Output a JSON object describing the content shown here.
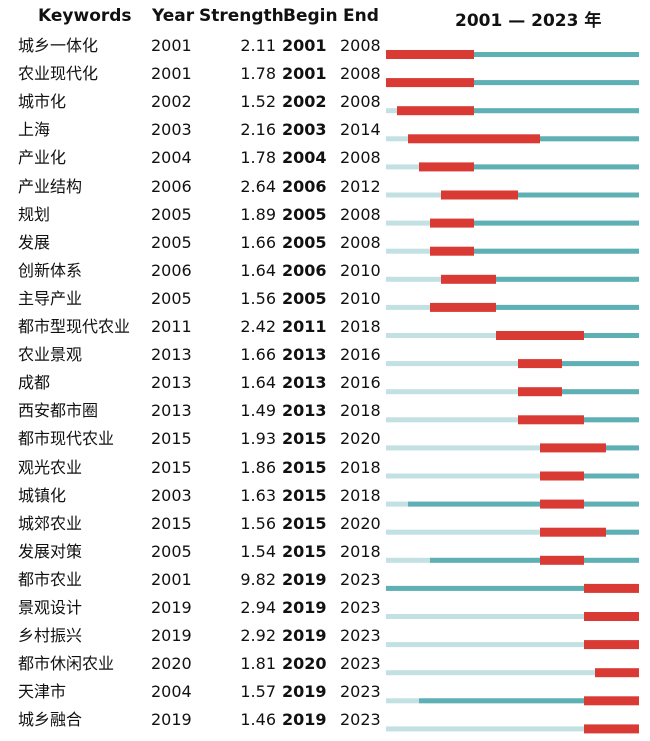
{
  "header": {
    "keywords": "Keywords",
    "year": "Year",
    "strength": "Strength",
    "begin": "Begin",
    "end": "End",
    "range": "2001 — 2023 年"
  },
  "colors": {
    "burst": "#d93a33",
    "active": "#5fb0b4",
    "inactive": "#c3e0e2"
  },
  "chart_data": {
    "type": "table",
    "range_start": 2001,
    "range_end": 2023,
    "columns": [
      "Keywords",
      "Year",
      "Strength",
      "Begin",
      "End"
    ],
    "rows": [
      {
        "keyword": "城乡一体化",
        "year": "2001",
        "strength": "2.11",
        "begin": "2001",
        "end": "2008"
      },
      {
        "keyword": "农业现代化",
        "year": "2001",
        "strength": "1.78",
        "begin": "2001",
        "end": "2008"
      },
      {
        "keyword": "城市化",
        "year": "2002",
        "strength": "1.52",
        "begin": "2002",
        "end": "2008"
      },
      {
        "keyword": "上海",
        "year": "2003",
        "strength": "2.16",
        "begin": "2003",
        "end": "2014"
      },
      {
        "keyword": "产业化",
        "year": "2004",
        "strength": "1.78",
        "begin": "2004",
        "end": "2008"
      },
      {
        "keyword": "产业结构",
        "year": "2006",
        "strength": "2.64",
        "begin": "2006",
        "end": "2012"
      },
      {
        "keyword": "规划",
        "year": "2005",
        "strength": "1.89",
        "begin": "2005",
        "end": "2008"
      },
      {
        "keyword": "发展",
        "year": "2005",
        "strength": "1.66",
        "begin": "2005",
        "end": "2008"
      },
      {
        "keyword": "创新体系",
        "year": "2006",
        "strength": "1.64",
        "begin": "2006",
        "end": "2010"
      },
      {
        "keyword": "主导产业",
        "year": "2005",
        "strength": "1.56",
        "begin": "2005",
        "end": "2010"
      },
      {
        "keyword": "都市型现代农业",
        "year": "2011",
        "strength": "2.42",
        "begin": "2011",
        "end": "2018"
      },
      {
        "keyword": "农业景观",
        "year": "2013",
        "strength": "1.66",
        "begin": "2013",
        "end": "2016"
      },
      {
        "keyword": "成都",
        "year": "2013",
        "strength": "1.64",
        "begin": "2013",
        "end": "2016"
      },
      {
        "keyword": "西安都市圈",
        "year": "2013",
        "strength": "1.49",
        "begin": "2013",
        "end": "2018"
      },
      {
        "keyword": "都市现代农业",
        "year": "2015",
        "strength": "1.93",
        "begin": "2015",
        "end": "2020"
      },
      {
        "keyword": "观光农业",
        "year": "2015",
        "strength": "1.86",
        "begin": "2015",
        "end": "2018"
      },
      {
        "keyword": "城镇化",
        "year": "2003",
        "strength": "1.63",
        "begin": "2015",
        "end": "2018"
      },
      {
        "keyword": "城郊农业",
        "year": "2015",
        "strength": "1.56",
        "begin": "2015",
        "end": "2020"
      },
      {
        "keyword": "发展对策",
        "year": "2005",
        "strength": "1.54",
        "begin": "2015",
        "end": "2018"
      },
      {
        "keyword": "都市农业",
        "year": "2001",
        "strength": "9.82",
        "begin": "2019",
        "end": "2023"
      },
      {
        "keyword": "景观设计",
        "year": "2019",
        "strength": "2.94",
        "begin": "2019",
        "end": "2023"
      },
      {
        "keyword": "乡村振兴",
        "year": "2019",
        "strength": "2.92",
        "begin": "2019",
        "end": "2023"
      },
      {
        "keyword": "都市休闲农业",
        "year": "2020",
        "strength": "1.81",
        "begin": "2020",
        "end": "2023"
      },
      {
        "keyword": "天津市",
        "year": "2004",
        "strength": "1.57",
        "begin": "2019",
        "end": "2023"
      },
      {
        "keyword": "城乡融合",
        "year": "2019",
        "strength": "1.46",
        "begin": "2019",
        "end": "2023"
      }
    ]
  }
}
